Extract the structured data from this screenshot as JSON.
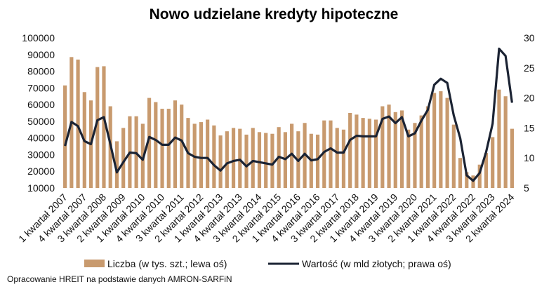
{
  "chart_data": {
    "type": "bar+line",
    "title": "Nowo udzielane kredyty hipoteczne",
    "source_note": "Opracowanie HREIT na podstawie danych AMRON-SARFiN",
    "x_tick_labels": [
      "1 kwartał 2007",
      "4 kwartał 2007",
      "3 kwartał 2008",
      "2 kwartał 2009",
      "1 kwartał 2010",
      "4 kwartał 2010",
      "3 kwartał 2011",
      "2 kwartał 2012",
      "1 kwartał 2013",
      "4 kwartał 2013",
      "3 kwartał 2014",
      "2 kwartał 2015",
      "1 kwartał 2016",
      "4 kwartał 2016",
      "3 kwartał 2017",
      "2 kwartał 2018",
      "1 kwartał 2019",
      "4 kwartał 2019",
      "3 kwartał 2020",
      "2 kwartał 2021",
      "1 kwartał 2022",
      "4 kwartał 2022",
      "3 kwartał 2023",
      "2 kwartał 2024"
    ],
    "x_start": "1 kwartał 2007",
    "x_end": "2 kwartał 2024",
    "left_axis": {
      "ylim": [
        10000,
        100000
      ],
      "ticks": [
        10000,
        20000,
        30000,
        40000,
        50000,
        60000,
        70000,
        80000,
        90000,
        100000
      ]
    },
    "right_axis": {
      "ylim": [
        5,
        30
      ],
      "ticks": [
        5,
        10,
        15,
        20,
        25,
        30
      ]
    },
    "colors": {
      "bars": "#C89A6E",
      "line": "#1B2333"
    },
    "legend_position": "bottom",
    "series": [
      {
        "name": "Liczba (w tys. szt.; lewa oś)",
        "type": "bar",
        "axis": "left",
        "values": [
          71500,
          88500,
          87000,
          67500,
          62500,
          82500,
          83000,
          59000,
          38000,
          46000,
          53000,
          53000,
          48500,
          64000,
          61500,
          57500,
          57500,
          62500,
          60000,
          52000,
          48500,
          49500,
          51000,
          47500,
          41500,
          44000,
          46000,
          45500,
          42000,
          46000,
          43500,
          43000,
          42500,
          46500,
          43500,
          48500,
          44000,
          49000,
          42500,
          42000,
          50500,
          50500,
          46000,
          45000,
          55000,
          54000,
          52000,
          51500,
          51000,
          59000,
          60000,
          55500,
          56500,
          45000,
          49000,
          53500,
          59000,
          67000,
          68000,
          64000,
          48000,
          28000,
          19500,
          17500,
          24000,
          31000,
          40500,
          69000,
          65000,
          45500
        ]
      },
      {
        "name": "Wartość (w mld złotych; prawa oś)",
        "type": "line",
        "axis": "right",
        "values": [
          12.0,
          16.0,
          15.3,
          12.8,
          12.3,
          16.3,
          16.8,
          12.3,
          7.6,
          9.3,
          10.9,
          10.8,
          9.7,
          13.5,
          13.0,
          12.2,
          12.2,
          13.4,
          12.9,
          10.8,
          10.2,
          10.0,
          10.0,
          8.8,
          7.9,
          9.1,
          9.5,
          9.7,
          8.6,
          9.5,
          9.3,
          9.1,
          8.9,
          10.2,
          9.8,
          10.7,
          9.5,
          10.7,
          9.6,
          9.8,
          11.0,
          11.6,
          10.9,
          10.9,
          13.0,
          13.7,
          13.6,
          13.6,
          13.6,
          16.5,
          16.9,
          15.8,
          16.8,
          13.6,
          14.1,
          16.2,
          18.0,
          22.2,
          23.2,
          22.5,
          17.1,
          13.3,
          7.1,
          6.2,
          7.5,
          11.0,
          15.7,
          28.2,
          27.0,
          19.2
        ]
      }
    ]
  }
}
